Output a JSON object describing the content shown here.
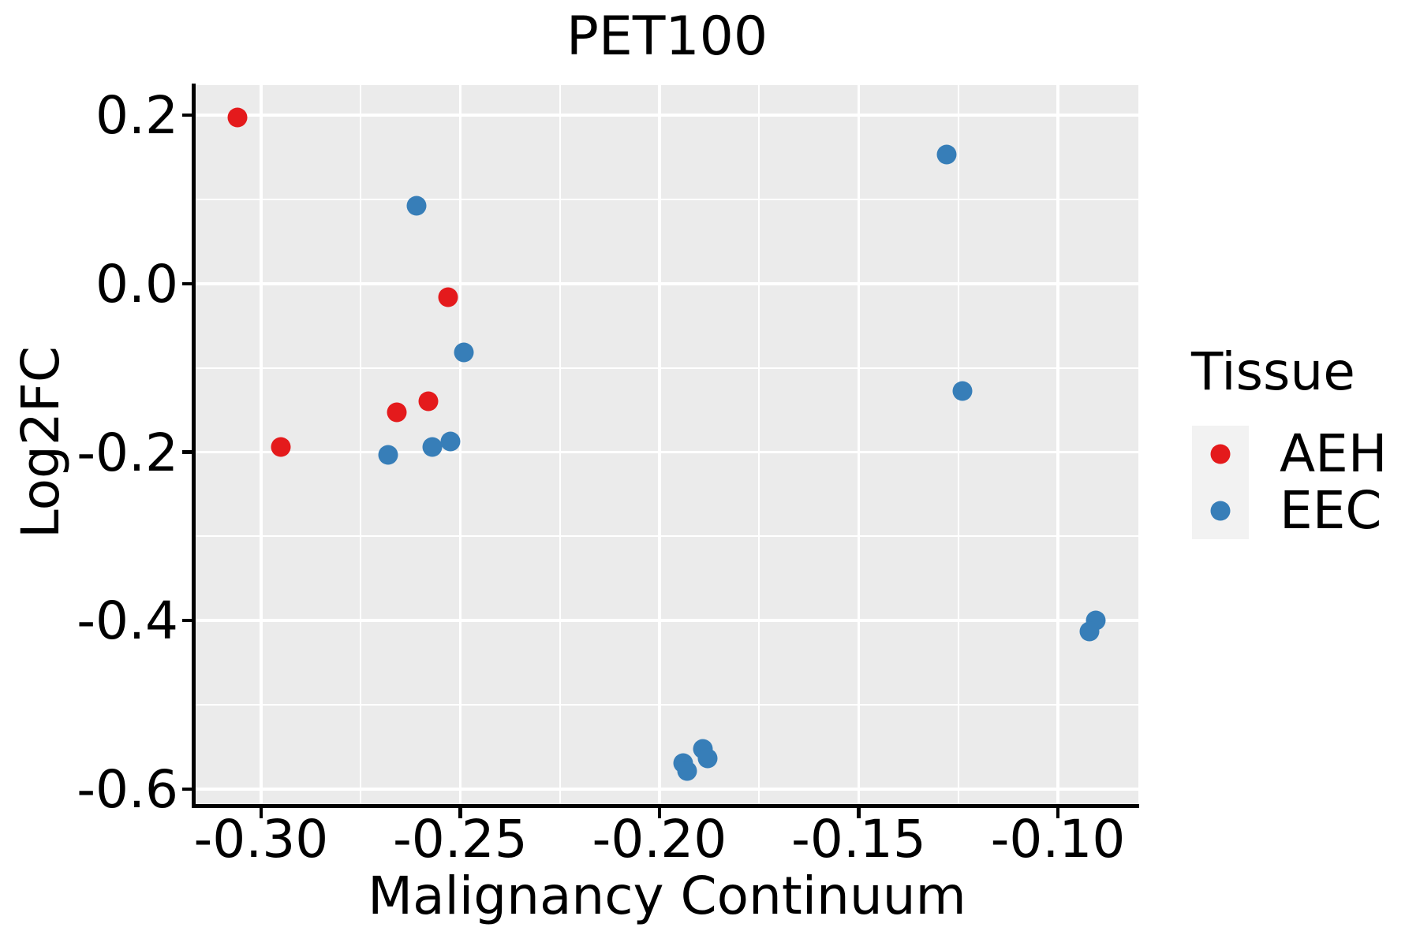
{
  "figure_title": "PET100",
  "chart_data": {
    "type": "scatter",
    "title": "PET100",
    "xlabel": "Malignancy Continuum",
    "ylabel": "Log2FC",
    "xlim": [
      -0.3164,
      -0.0798
    ],
    "ylim": [
      -0.6178,
      0.2356
    ],
    "x_major_ticks": [
      -0.3,
      -0.25,
      -0.2,
      -0.15,
      -0.1
    ],
    "x_tick_labels": [
      "-0.30",
      "-0.25",
      "-0.20",
      "-0.15",
      "-0.10"
    ],
    "x_minor_ticks": [
      -0.275,
      -0.225,
      -0.175,
      -0.125
    ],
    "y_major_ticks": [
      0.2,
      0.0,
      -0.2,
      -0.4,
      -0.6
    ],
    "y_tick_labels": [
      "0.2",
      "0.0",
      "-0.2",
      "-0.4",
      "-0.6"
    ],
    "y_minor_ticks": [
      0.1,
      -0.1,
      -0.3,
      -0.5
    ],
    "grid": "white major and minor gridlines on gray panel",
    "legend": {
      "title": "Tissue",
      "position": "right"
    },
    "marker_diameter_px": 25,
    "series": [
      {
        "name": "AEH",
        "color": "#E41A1C",
        "points": [
          [
            -0.306,
            0.197
          ],
          [
            -0.253,
            -0.016
          ],
          [
            -0.258,
            -0.14
          ],
          [
            -0.266,
            -0.153
          ],
          [
            -0.295,
            -0.194
          ]
        ]
      },
      {
        "name": "EEC",
        "color": "#377EB8",
        "points": [
          [
            -0.261,
            0.092
          ],
          [
            -0.249,
            -0.082
          ],
          [
            -0.268,
            -0.203
          ],
          [
            -0.257,
            -0.194
          ],
          [
            -0.2525,
            -0.187
          ],
          [
            -0.194,
            -0.569
          ],
          [
            -0.193,
            -0.5785
          ],
          [
            -0.189,
            -0.552
          ],
          [
            -0.188,
            -0.5635
          ],
          [
            -0.128,
            0.153
          ],
          [
            -0.124,
            -0.1275
          ],
          [
            -0.0905,
            -0.4
          ],
          [
            -0.092,
            -0.413
          ]
        ]
      }
    ],
    "colors": {
      "panel_bg": "#EBEBEB",
      "gridline": "#FFFFFF",
      "axis": "#000000",
      "text": "#000000",
      "legend_key_bg": "#F2F2F2",
      "aeh": "#E41A1C",
      "eec": "#377EB8"
    }
  }
}
